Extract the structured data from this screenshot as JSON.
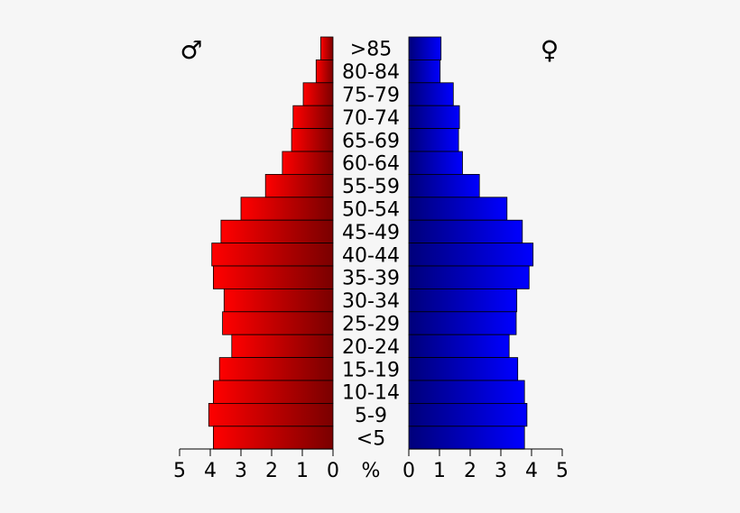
{
  "chart_data": {
    "type": "bar",
    "orientation": "horizontal-population-pyramid",
    "categories": [
      ">85",
      "80-84",
      "75-79",
      "70-74",
      "65-69",
      "60-64",
      "55-59",
      "50-54",
      "45-49",
      "40-44",
      "35-39",
      "30-34",
      "25-29",
      "20-24",
      "15-19",
      "10-14",
      "5-9",
      "<5"
    ],
    "series": [
      {
        "symbol": "♂",
        "side": "left",
        "color": "#ff0000",
        "color_dark": "#7a0000",
        "values": [
          0.4,
          0.55,
          0.97,
          1.3,
          1.35,
          1.65,
          2.2,
          3.0,
          3.65,
          3.95,
          3.9,
          3.55,
          3.6,
          3.3,
          3.7,
          3.9,
          4.05,
          3.9
        ]
      },
      {
        "symbol": "♀",
        "side": "right",
        "color": "#0000ff",
        "color_dark": "#00007a",
        "values": [
          1.05,
          1.02,
          1.45,
          1.65,
          1.62,
          1.75,
          2.3,
          3.2,
          3.7,
          4.05,
          3.92,
          3.52,
          3.5,
          3.27,
          3.55,
          3.77,
          3.85,
          3.77
        ]
      }
    ],
    "axis": {
      "unit_label": "%",
      "xlim": [
        0,
        5
      ],
      "ticks": [
        "0",
        "1",
        "2",
        "3",
        "4",
        "5"
      ]
    },
    "grid": false,
    "legend": "top-corners"
  }
}
